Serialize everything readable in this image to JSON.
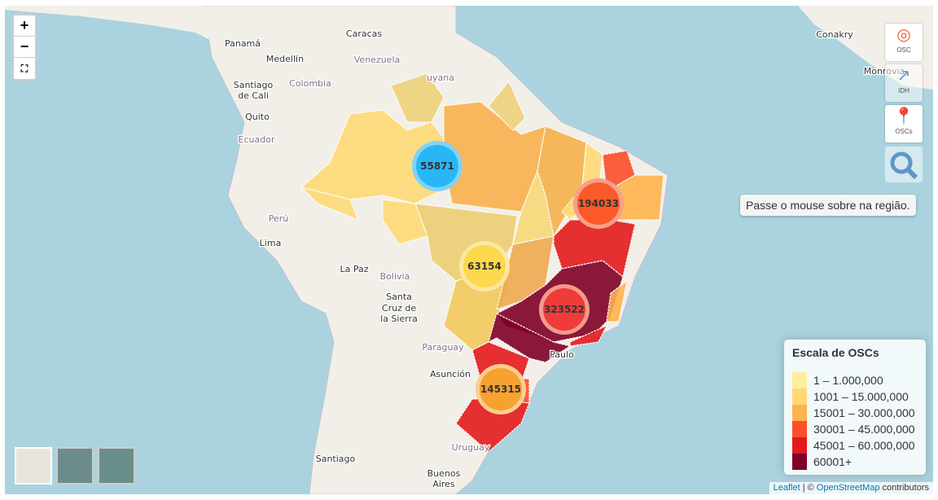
{
  "zoom_controls": {
    "zoom_in": "+",
    "zoom_out": "−"
  },
  "place_labels": [
    "Caracas",
    "Panamá",
    "Medellín",
    "Venezuela",
    "uyana",
    "Colombia",
    "Santiago",
    "de Cali",
    "Quito",
    "Ecuador",
    "Perú",
    "Lima",
    "La Paz",
    "Bolivia",
    "Santa",
    "Cruz de",
    "la Sierra",
    "Paraguay",
    "Asunción",
    "Paulo",
    "Uruguay",
    "Santiago",
    "Buenos",
    "Aires",
    "Conakry",
    "Monrovia"
  ],
  "layer_buttons": [
    "OSC",
    "IDH",
    "OSCs"
  ],
  "tooltip": "Passe o mouse sobre na região.",
  "clusters": [
    55871,
    194033,
    63154,
    323522,
    145315
  ],
  "legend": {
    "title": "Escala de OSCs",
    "items": [
      {
        "label": "1 – 1.000,000",
        "color": "#ffeda0"
      },
      {
        "label": "1001 – 15.000,000",
        "color": "#fed976"
      },
      {
        "label": "15001 – 30.000,000",
        "color": "#feb24c"
      },
      {
        "label": "30001 – 45.000,000",
        "color": "#fc4e2a"
      },
      {
        "label": "45001 – 60.000,000",
        "color": "#e31a1c"
      },
      {
        "label": "60001+",
        "color": "#800026"
      }
    ]
  },
  "attribution": {
    "leaflet": "Leaflet",
    "separator": "|",
    "copyright": "©",
    "osm": "OpenStreetMap",
    "contributors": "contributors"
  }
}
